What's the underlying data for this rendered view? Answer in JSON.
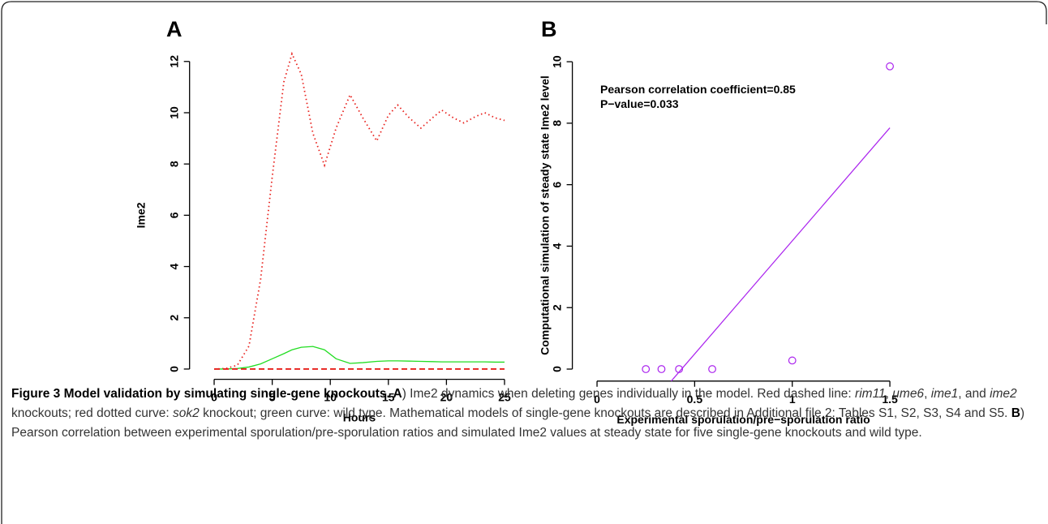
{
  "chart_data": [
    {
      "type": "line",
      "panel": "A",
      "xlabel": "Hours",
      "ylabel": "Ime2",
      "x": [
        0,
        1,
        2,
        3,
        4,
        5,
        6,
        6.7,
        7.5,
        8.5,
        9.5,
        10.5,
        11.7,
        12.8,
        14,
        15,
        15.8,
        16.8,
        17.8,
        18.8,
        19.6,
        20.6,
        21.5,
        22.5,
        23.3,
        24.2,
        25
      ],
      "series": [
        {
          "color": "#e8201c",
          "line_style": "dotted",
          "values": [
            0,
            0.02,
            0.15,
            0.9,
            3.5,
            7.5,
            11.2,
            12.3,
            11.5,
            9.2,
            7.95,
            9.4,
            10.7,
            9.8,
            8.9,
            9.9,
            10.3,
            9.8,
            9.4,
            9.8,
            10.1,
            9.8,
            9.6,
            9.85,
            10.0,
            9.8,
            9.7
          ]
        },
        {
          "color": "#22dd22",
          "line_style": "solid",
          "values": [
            0,
            0,
            0.02,
            0.08,
            0.2,
            0.4,
            0.6,
            0.75,
            0.85,
            0.88,
            0.75,
            0.4,
            0.22,
            0.25,
            0.3,
            0.32,
            0.32,
            0.31,
            0.3,
            0.29,
            0.28,
            0.28,
            0.28,
            0.28,
            0.28,
            0.27,
            0.27
          ]
        },
        {
          "color": "#e8201c",
          "line_style": "dashed",
          "values": [
            0,
            0,
            0,
            0,
            0,
            0,
            0,
            0,
            0,
            0,
            0,
            0,
            0,
            0,
            0,
            0,
            0,
            0,
            0,
            0,
            0,
            0,
            0,
            0,
            0,
            0,
            0
          ]
        }
      ],
      "xlim": [
        -1,
        26
      ],
      "ylim": [
        -0.4,
        12.8
      ],
      "xticks": [
        0,
        5,
        10,
        15,
        20,
        25
      ],
      "yticks": [
        0,
        2,
        4,
        6,
        8,
        10,
        12
      ]
    },
    {
      "type": "scatter",
      "panel": "B",
      "xlabel": "Experimental sporulation/pre−sporulation ratio",
      "ylabel": "Computational simulation of steady state Ime2 level",
      "x": [
        0.25,
        0.33,
        0.42,
        0.59,
        1.0,
        1.5
      ],
      "values": [
        0,
        0,
        0,
        0,
        0.28,
        9.85
      ],
      "color": "#aa22ee",
      "fit_line": {
        "x": [
          0.38,
          1.5
        ],
        "values": [
          -0.39,
          7.85
        ]
      },
      "annotations": [
        "Pearson correlation coefficient=0.85",
        "P−value=0.033"
      ],
      "xlim": [
        -0.06,
        1.56
      ],
      "ylim": [
        -0.39,
        10.24
      ],
      "xticks": [
        0,
        0.5,
        1,
        1.5
      ],
      "yticks": [
        0,
        2,
        4,
        6,
        8,
        10
      ]
    }
  ],
  "caption": [
    {
      "text": "Figure 3 Model validation by simulating single-gene knockouts. A",
      "style": "bold"
    },
    {
      "text": ") Ime2 dynamics when deleting genes individually in the model. Red dashed line: ",
      "style": "normal"
    },
    {
      "text": "rim11",
      "style": "italic"
    },
    {
      "text": ", ",
      "style": "normal"
    },
    {
      "text": "ume6",
      "style": "italic"
    },
    {
      "text": ", ",
      "style": "normal"
    },
    {
      "text": "ime1",
      "style": "italic"
    },
    {
      "text": ", and ",
      "style": "normal"
    },
    {
      "text": "ime2",
      "style": "italic"
    },
    {
      "text": " knockouts; red dotted curve: ",
      "style": "normal"
    },
    {
      "text": "sok2",
      "style": "italic"
    },
    {
      "text": " knockout; green curve: wild type. Mathematical models of single-gene knockouts are described in Additional file 2: Tables S1, S2, S3, S4 and S5. ",
      "style": "normal"
    },
    {
      "text": "B",
      "style": "bold"
    },
    {
      "text": ") Pearson correlation between experimental sporulation/pre-sporulation ratios and simulated Ime2 values at steady state for five single-gene knockouts and wild type.",
      "style": "normal"
    }
  ]
}
